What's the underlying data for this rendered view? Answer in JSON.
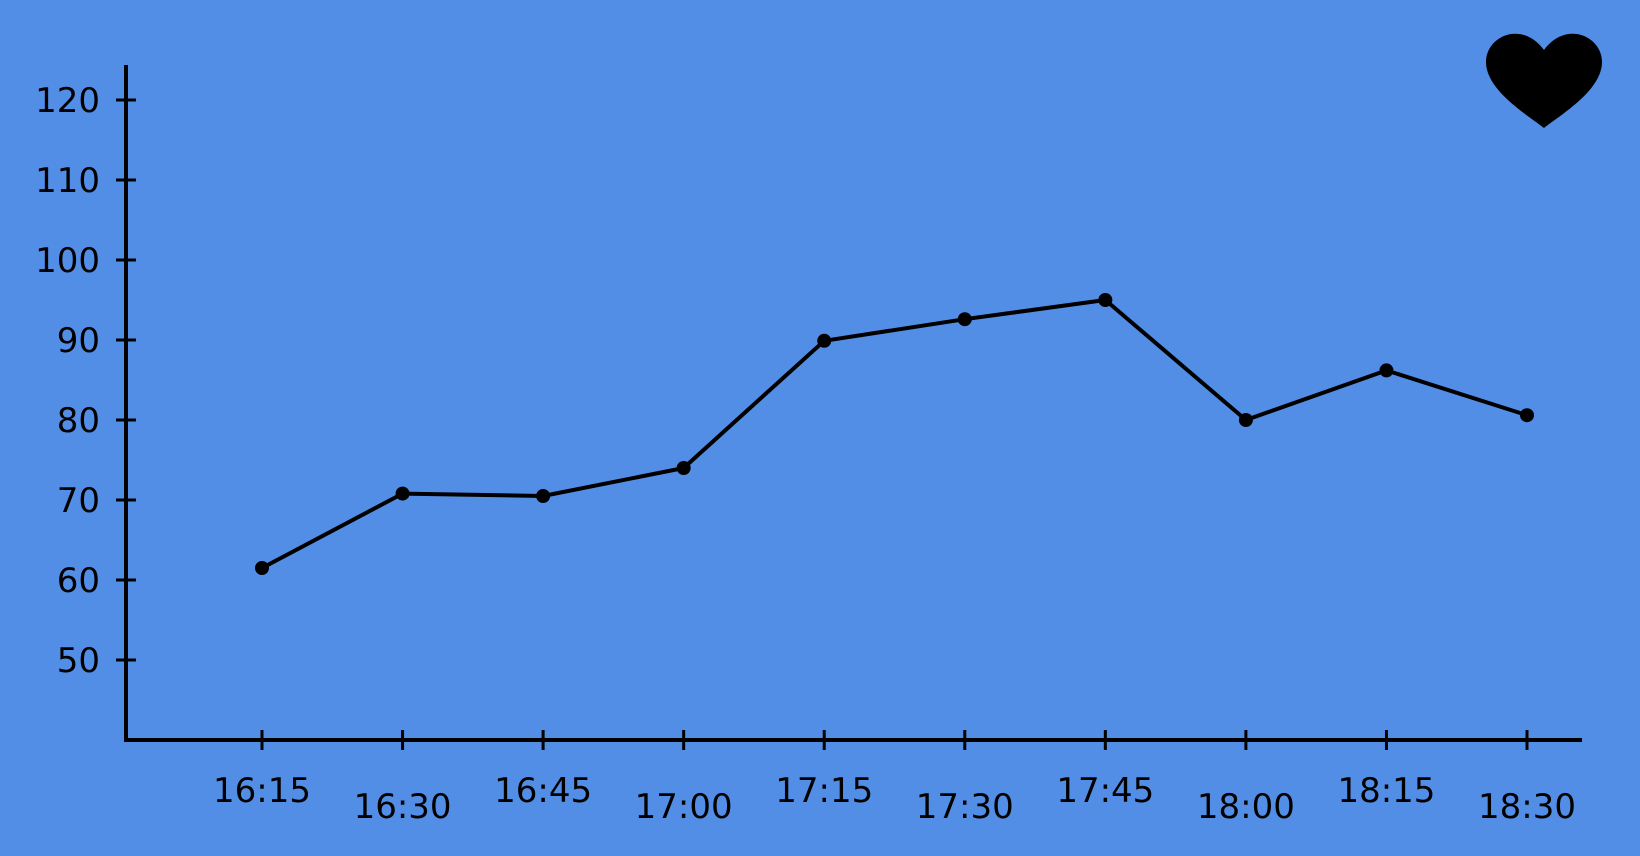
{
  "chart_data": {
    "type": "line",
    "title": "",
    "xlabel": "",
    "ylabel": "",
    "categories": [
      "16:15",
      "16:30",
      "16:45",
      "17:00",
      "17:15",
      "17:30",
      "17:45",
      "18:00",
      "18:15",
      "18:30"
    ],
    "series": [
      {
        "values": [
          61.5,
          70.8,
          70.5,
          74,
          89.9,
          92.6,
          95,
          80,
          86.2,
          80.6
        ]
      }
    ],
    "yticks": [
      50,
      60,
      70,
      80,
      90,
      100,
      110,
      120
    ],
    "ylim": [
      40,
      124.5
    ],
    "grid": false,
    "line_color": "#000000",
    "marker": "filled-circle"
  },
  "icons": {
    "corner_icon": "heart-icon"
  },
  "colors": {
    "background": "#538ee6",
    "foreground": "#000000"
  }
}
